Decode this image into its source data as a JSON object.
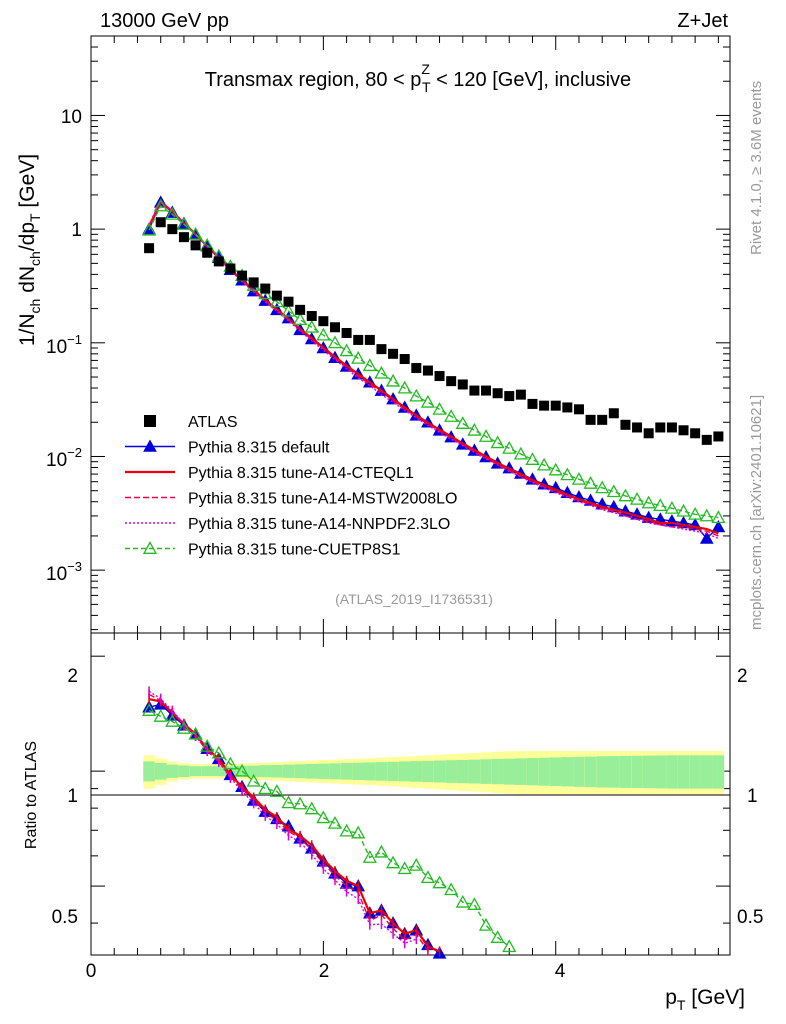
{
  "header": {
    "energy": "13000 GeV pp",
    "process": "Z+Jet",
    "title_main": "Transmax region, 80 < p",
    "title_sup": "Z",
    "title_sub": "T",
    "title_rest": " < 120 [GeV], inclusive",
    "analysis": "(ATLAS_2019_I1736531)",
    "side_rivet": "Rivet 4.1.0, ≥ 3.6M events",
    "side_mcplots": "mcplots.cern.ch [arXiv:2401.10621]"
  },
  "axes": {
    "ylabel_main": "1/N dN/dp [GeV]",
    "ylabel_parts": [
      "1/N",
      "ch",
      " dN",
      "ch",
      "/dp",
      "T",
      " [GeV]"
    ],
    "ylabel_ratio": "Ratio to ATLAS",
    "xlabel": "p",
    "xlabel_sub": "T",
    "xlabel_unit": " [GeV]",
    "x_ticks": [
      "0",
      "2",
      "4"
    ],
    "y_main_ticks": [
      {
        "value": 10,
        "label": "10",
        "exp": ""
      },
      {
        "value": 1,
        "label": "1",
        "exp": ""
      },
      {
        "value": 0.1,
        "label": "10",
        "exp": "−1"
      },
      {
        "value": 0.01,
        "label": "10",
        "exp": "−2"
      },
      {
        "value": 0.001,
        "label": "10",
        "exp": "−3"
      }
    ],
    "y_ratio_ticks": [
      "2",
      "1",
      "0.5"
    ]
  },
  "legend": [
    {
      "label": "ATLAS",
      "color": "#000000",
      "style": "square"
    },
    {
      "label": "Pythia 8.315 default",
      "color": "#0000dd",
      "style": "triangle"
    },
    {
      "label": "Pythia 8.315 tune-A14-CTEQL1",
      "color": "#ee0000",
      "style": "solid"
    },
    {
      "label": "Pythia 8.315 tune-A14-MSTW2008LO",
      "color": "#ee0044",
      "style": "dashed"
    },
    {
      "label": "Pythia 8.315 tune-A14-NNPDF2.3LO",
      "color": "#dd00dd",
      "style": "dotted"
    },
    {
      "label": "Pythia 8.315 tune-CUETP8S1",
      "color": "#22bb22",
      "style": "open-triangle-dashed"
    }
  ],
  "chart_data": {
    "type": "scatter",
    "x_range": [
      0,
      5.5
    ],
    "y_main_range": [
      0.00028,
      50
    ],
    "y_main_scale": "log",
    "y_ratio_range": [
      0.33,
      2.3
    ],
    "y_ratio_scale": "log",
    "x": [
      0.5,
      0.6,
      0.7,
      0.8,
      0.9,
      1.0,
      1.1,
      1.2,
      1.3,
      1.4,
      1.5,
      1.6,
      1.7,
      1.8,
      1.9,
      2.0,
      2.1,
      2.2,
      2.3,
      2.4,
      2.5,
      2.6,
      2.7,
      2.8,
      2.9,
      3.0,
      3.1,
      3.2,
      3.3,
      3.4,
      3.5,
      3.6,
      3.7,
      3.8,
      3.9,
      4.0,
      4.1,
      4.2,
      4.3,
      4.4,
      4.5,
      4.6,
      4.7,
      4.8,
      4.9,
      5.0,
      5.1,
      5.2,
      5.3,
      5.4
    ],
    "atlas": [
      0.68,
      1.15,
      1.0,
      0.85,
      0.72,
      0.62,
      0.52,
      0.45,
      0.39,
      0.34,
      0.3,
      0.26,
      0.23,
      0.195,
      0.172,
      0.155,
      0.137,
      0.122,
      0.106,
      0.106,
      0.088,
      0.08,
      0.072,
      0.06,
      0.057,
      0.051,
      0.046,
      0.043,
      0.038,
      0.038,
      0.036,
      0.034,
      0.035,
      0.029,
      0.028,
      0.028,
      0.027,
      0.026,
      0.021,
      0.021,
      0.024,
      0.019,
      0.018,
      0.016,
      0.018,
      0.018,
      0.017,
      0.016,
      0.014,
      0.015
    ],
    "band_inner": [
      0.06,
      0.05,
      0.04,
      0.035,
      0.03,
      0.03,
      0.03,
      0.03,
      0.032,
      0.034,
      0.036,
      0.038,
      0.04,
      0.042,
      0.044,
      0.046,
      0.048,
      0.05,
      0.052,
      0.054,
      0.056,
      0.058,
      0.06,
      0.062,
      0.064,
      0.066,
      0.068,
      0.07,
      0.072,
      0.074,
      0.076,
      0.078,
      0.08,
      0.082,
      0.084,
      0.086,
      0.088,
      0.09,
      0.092,
      0.094,
      0.095,
      0.096,
      0.097,
      0.098,
      0.099,
      0.1,
      0.1,
      0.1,
      0.1,
      0.1
    ],
    "band_outer": [
      0.1,
      0.08,
      0.06,
      0.05,
      0.045,
      0.045,
      0.045,
      0.045,
      0.048,
      0.05,
      0.053,
      0.056,
      0.06,
      0.063,
      0.066,
      0.069,
      0.072,
      0.075,
      0.078,
      0.081,
      0.085,
      0.088,
      0.092,
      0.096,
      0.1,
      0.104,
      0.108,
      0.112,
      0.116,
      0.12,
      0.124,
      0.128,
      0.13,
      0.13,
      0.13,
      0.13,
      0.13,
      0.13,
      0.13,
      0.13,
      0.13,
      0.13,
      0.13,
      0.13,
      0.13,
      0.13,
      0.13,
      0.13,
      0.13,
      0.13
    ],
    "series": [
      {
        "name": "Pythia 8.315 default",
        "color": "#0000dd",
        "dash": "",
        "marker": "triangle",
        "values": [
          1.0,
          1.72,
          1.4,
          1.12,
          0.9,
          0.71,
          0.56,
          0.44,
          0.355,
          0.285,
          0.235,
          0.195,
          0.165,
          0.13,
          0.108,
          0.09,
          0.074,
          0.062,
          0.053,
          0.045,
          0.038,
          0.032,
          0.027,
          0.023,
          0.02,
          0.017,
          0.0148,
          0.0128,
          0.0113,
          0.0099,
          0.0087,
          0.0079,
          0.0071,
          0.0063,
          0.0057,
          0.0053,
          0.0048,
          0.0044,
          0.0041,
          0.0038,
          0.0036,
          0.0033,
          0.0031,
          0.0029,
          0.0028,
          0.0027,
          0.0026,
          0.0025,
          0.0019,
          0.0024
        ]
      },
      {
        "name": "Pythia 8.315 tune-A14-CTEQL1",
        "color": "#ee0000",
        "dash": "",
        "marker": "none",
        "values": [
          1.05,
          1.75,
          1.42,
          1.13,
          0.9,
          0.71,
          0.56,
          0.44,
          0.355,
          0.29,
          0.238,
          0.197,
          0.162,
          0.132,
          0.11,
          0.091,
          0.075,
          0.063,
          0.053,
          0.045,
          0.038,
          0.032,
          0.027,
          0.023,
          0.0198,
          0.0172,
          0.015,
          0.013,
          0.0114,
          0.01,
          0.0088,
          0.0078,
          0.007,
          0.0062,
          0.0056,
          0.0051,
          0.0046,
          0.0042,
          0.0039,
          0.0036,
          0.0034,
          0.0032,
          0.003,
          0.0028,
          0.0026,
          0.0026,
          0.0025,
          0.0024,
          0.0023,
          0.0021
        ]
      },
      {
        "name": "Pythia 8.315 tune-A14-MSTW2008LO",
        "color": "#ee0044",
        "dash": "6,3",
        "marker": "none",
        "values": [
          1.08,
          1.76,
          1.43,
          1.12,
          0.89,
          0.7,
          0.55,
          0.435,
          0.35,
          0.286,
          0.234,
          0.193,
          0.16,
          0.13,
          0.107,
          0.089,
          0.073,
          0.061,
          0.051,
          0.043,
          0.037,
          0.031,
          0.026,
          0.0224,
          0.0193,
          0.0168,
          0.0146,
          0.0127,
          0.011,
          0.0097,
          0.0085,
          0.0075,
          0.0067,
          0.006,
          0.0054,
          0.0049,
          0.0045,
          0.0041,
          0.0038,
          0.0035,
          0.0033,
          0.003,
          0.0028,
          0.0027,
          0.0025,
          0.0024,
          0.0024,
          0.0023,
          0.0022,
          0.002
        ]
      },
      {
        "name": "Pythia 8.315 tune-A14-NNPDF2.3LO",
        "color": "#dd00dd",
        "dash": "2,2",
        "marker": "none",
        "values": [
          1.1,
          1.78,
          1.44,
          1.13,
          0.89,
          0.7,
          0.55,
          0.432,
          0.346,
          0.28,
          0.229,
          0.189,
          0.156,
          0.127,
          0.104,
          0.086,
          0.071,
          0.059,
          0.049,
          0.042,
          0.035,
          0.03,
          0.0255,
          0.0218,
          0.0188,
          0.0163,
          0.0142,
          0.0124,
          0.0108,
          0.0095,
          0.0084,
          0.0074,
          0.0066,
          0.0059,
          0.0053,
          0.0048,
          0.0044,
          0.004,
          0.0037,
          0.0034,
          0.0032,
          0.003,
          0.0028,
          0.0026,
          0.0025,
          0.0024,
          0.0023,
          0.0022,
          0.0021,
          0.0019
        ]
      },
      {
        "name": "Pythia 8.315 tune-CUETP8S1",
        "color": "#22bb22",
        "dash": "5,3",
        "marker": "open-triangle",
        "values": [
          0.98,
          1.6,
          1.35,
          1.1,
          0.9,
          0.72,
          0.58,
          0.47,
          0.39,
          0.32,
          0.27,
          0.23,
          0.19,
          0.16,
          0.137,
          0.117,
          0.1,
          0.085,
          0.073,
          0.063,
          0.054,
          0.046,
          0.04,
          0.034,
          0.03,
          0.026,
          0.0225,
          0.0195,
          0.017,
          0.015,
          0.0132,
          0.0118,
          0.0105,
          0.0094,
          0.0084,
          0.0076,
          0.0069,
          0.0063,
          0.0058,
          0.0053,
          0.0049,
          0.0045,
          0.0042,
          0.0039,
          0.0037,
          0.0035,
          0.0033,
          0.0031,
          0.003,
          0.0029
        ]
      }
    ]
  }
}
